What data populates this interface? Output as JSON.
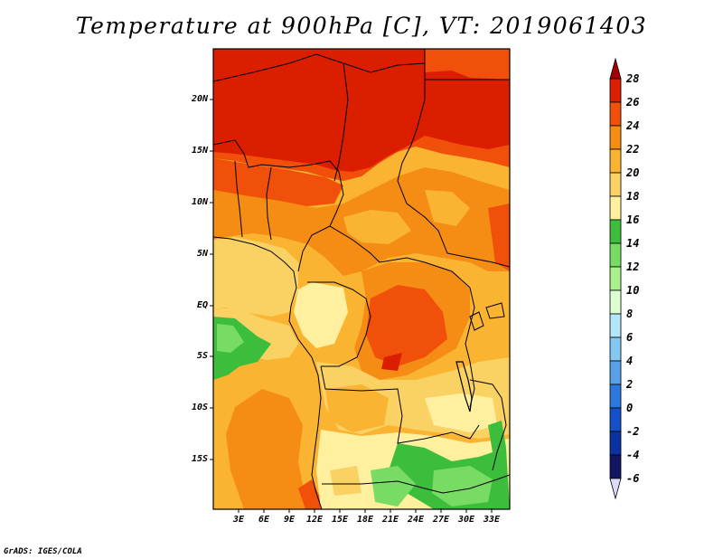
{
  "title": "Temperature at 900hPa [C], VT: 2019061403",
  "credit": "GrADS: IGES/COLA",
  "map": {
    "lat_labels": [
      "20N",
      "15N",
      "10N",
      "5N",
      "EQ",
      "5S",
      "10S",
      "15S"
    ],
    "lon_labels": [
      "3E",
      "6E",
      "9E",
      "12E",
      "15E",
      "18E",
      "21E",
      "24E",
      "27E",
      "30E",
      "33E"
    ]
  },
  "colorbar": {
    "labels": [
      "28",
      "26",
      "24",
      "22",
      "20",
      "18",
      "16",
      "14",
      "12",
      "10",
      "8",
      "6",
      "4",
      "2",
      "0",
      "-2",
      "-4",
      "-6"
    ],
    "colors": [
      "#a50000",
      "#dc1e00",
      "#f0500a",
      "#f58c14",
      "#fab432",
      "#fad264",
      "#fff0a0",
      "#3cbe3c",
      "#78dc64",
      "#aaf08c",
      "#dcffd2",
      "#b4e6fa",
      "#82c8f0",
      "#5aa0e6",
      "#2d78dc",
      "#1450c8",
      "#0a32a0",
      "#141464"
    ],
    "under_color": "#dcdcfa"
  }
}
